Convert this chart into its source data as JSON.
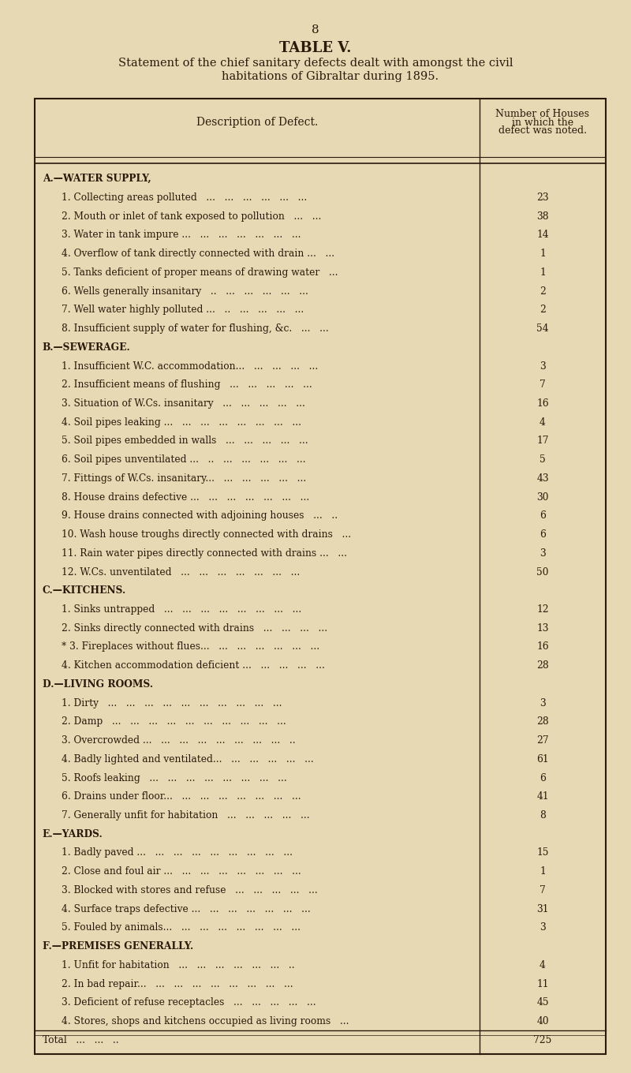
{
  "page_number": "8",
  "title": "TABLE V.",
  "subtitle_line1": "Statement of the chief sanitary defects dealt with amongst the civil",
  "subtitle_line2": "        habitations of Gibraltar during 1895.",
  "col1_header": "Description of Defect.",
  "col2_header": "Number of Houses\nin which the\ndefect was noted.",
  "background_color": "#e8d9b5",
  "text_color": "#2a1a0a",
  "rows": [
    {
      "text": "A.—WATER SUPPLY,",
      "value": null,
      "indent": 0,
      "bold": true
    },
    {
      "text": "1. Collecting areas polluted   ...   ...   ...   ...   ...   ...",
      "value": "23",
      "indent": 1
    },
    {
      "text": "2. Mouth or inlet of tank exposed to pollution   ...   ...",
      "value": "38",
      "indent": 1
    },
    {
      "text": "3. Water in tank impure ...   ...   ...   ...   ...   ...   ...",
      "value": "14",
      "indent": 1
    },
    {
      "text": "4. Overflow of tank directly connected with drain ...   ...",
      "value": "1",
      "indent": 1
    },
    {
      "text": "5. Tanks deficient of proper means of drawing water   ...",
      "value": "1",
      "indent": 1
    },
    {
      "text": "6. Wells generally insanitary   ..   ...   ...   ...   ...   ...",
      "value": "2",
      "indent": 1
    },
    {
      "text": "7. Well water highly polluted ...   ..   ...   ...   ...   ...",
      "value": "2",
      "indent": 1
    },
    {
      "text": "8. Insufficient supply of water for flushing, &c.   ...   ...",
      "value": "54",
      "indent": 1
    },
    {
      "text": "B.—SEWERAGE.",
      "value": null,
      "indent": 0,
      "bold": true
    },
    {
      "text": "1. Insufficient W.C. accommodation...   ...   ...   ...   ...",
      "value": "3",
      "indent": 1
    },
    {
      "text": "2. Insufficient means of flushing   ...   ...   ...   ...   ...",
      "value": "7",
      "indent": 1
    },
    {
      "text": "3. Situation of W.Cs. insanitary   ...   ...   ...   ...   ...",
      "value": "16",
      "indent": 1
    },
    {
      "text": "4. Soil pipes leaking ...   ...   ...   ...   ...   ...   ...   ...",
      "value": "4",
      "indent": 1
    },
    {
      "text": "5. Soil pipes embedded in walls   ...   ...   ...   ...   ...",
      "value": "17",
      "indent": 1
    },
    {
      "text": "6. Soil pipes unventilated ...   ..   ...   ...   ...   ...   ...",
      "value": "5",
      "indent": 1
    },
    {
      "text": "7. Fittings of W.Cs. insanitary...   ...   ...   ...   ...   ...",
      "value": "43",
      "indent": 1
    },
    {
      "text": "8. House drains defective ...   ...   ...   ...   ...   ...   ...",
      "value": "30",
      "indent": 1
    },
    {
      "text": "9. House drains connected with adjoining houses   ...   ..",
      "value": "6",
      "indent": 1
    },
    {
      "text": "10. Wash house troughs directly connected with drains   ...",
      "value": "6",
      "indent": 1
    },
    {
      "text": "11. Rain water pipes directly connected with drains ...   ...",
      "value": "3",
      "indent": 1
    },
    {
      "text": "12. W.Cs. unventilated   ...   ...   ...   ...   ...   ...   ...",
      "value": "50",
      "indent": 1
    },
    {
      "text": "C.—KITCHENS.",
      "value": null,
      "indent": 0,
      "bold": true
    },
    {
      "text": "1. Sinks untrapped   ...   ...   ...   ...   ...   ...   ...   ...",
      "value": "12",
      "indent": 1
    },
    {
      "text": "2. Sinks directly connected with drains   ...   ...   ...   ...",
      "value": "13",
      "indent": 1
    },
    {
      "text": "* 3. Fireplaces without flues...   ...   ...   ...   ...   ...   ...",
      "value": "16",
      "indent": 1
    },
    {
      "text": "4. Kitchen accommodation deficient ...   ...   ...   ...   ...",
      "value": "28",
      "indent": 1
    },
    {
      "text": "D.—LIVING ROOMS.",
      "value": null,
      "indent": 0,
      "bold": true
    },
    {
      "text": "1. Dirty   ...   ...   ...   ...   ...   ...   ...   ...   ...   ...",
      "value": "3",
      "indent": 1
    },
    {
      "text": "2. Damp   ...   ...   ...   ...   ...   ...   ...   ...   ...   ...",
      "value": "28",
      "indent": 1
    },
    {
      "text": "3. Overcrowded ...   ...   ...   ...   ...   ...   ...   ...   ..",
      "value": "27",
      "indent": 1
    },
    {
      "text": "4. Badly lighted and ventilated...   ...   ...   ...   ...   ...",
      "value": "61",
      "indent": 1
    },
    {
      "text": "5. Roofs leaking   ...   ...   ...   ...   ...   ...   ...   ...",
      "value": "6",
      "indent": 1
    },
    {
      "text": "6. Drains under floor...   ...   ...   ...   ...   ...   ...   ...",
      "value": "41",
      "indent": 1
    },
    {
      "text": "7. Generally unfit for habitation   ...   ...   ...   ...   ...",
      "value": "8",
      "indent": 1
    },
    {
      "text": "E.—YARDS.",
      "value": null,
      "indent": 0,
      "bold": true
    },
    {
      "text": "1. Badly paved ...   ...   ...   ...   ...   ...   ...   ...   ...",
      "value": "15",
      "indent": 1
    },
    {
      "text": "2. Close and foul air ...   ...   ...   ...   ...   ...   ...   ...",
      "value": "1",
      "indent": 1
    },
    {
      "text": "3. Blocked with stores and refuse   ...   ...   ...   ...   ...",
      "value": "7",
      "indent": 1
    },
    {
      "text": "4. Surface traps defective ...   ...   ...   ...   ...   ...   ...",
      "value": "31",
      "indent": 1
    },
    {
      "text": "5. Fouled by animals...   ...   ...   ...   ...   ...   ...   ...",
      "value": "3",
      "indent": 1
    },
    {
      "text": "F.—PREMISES GENERALLY.",
      "value": null,
      "indent": 0,
      "bold": true
    },
    {
      "text": "1. Unfit for habitation   ...   ...   ...   ...   ...   ...   ..",
      "value": "4",
      "indent": 1
    },
    {
      "text": "2. In bad repair...   ...   ...   ...   ...   ...   ...   ...   ...",
      "value": "11",
      "indent": 1
    },
    {
      "text": "3. Deficient of refuse receptacles   ...   ...   ...   ...   ...",
      "value": "45",
      "indent": 1
    },
    {
      "text": "4. Stores, shops and kitchens occupied as living rooms   ...",
      "value": "40",
      "indent": 1
    },
    {
      "text": "Total   ...   ...   ..",
      "value": "725",
      "indent": 0,
      "bold": false,
      "is_total": true
    }
  ]
}
